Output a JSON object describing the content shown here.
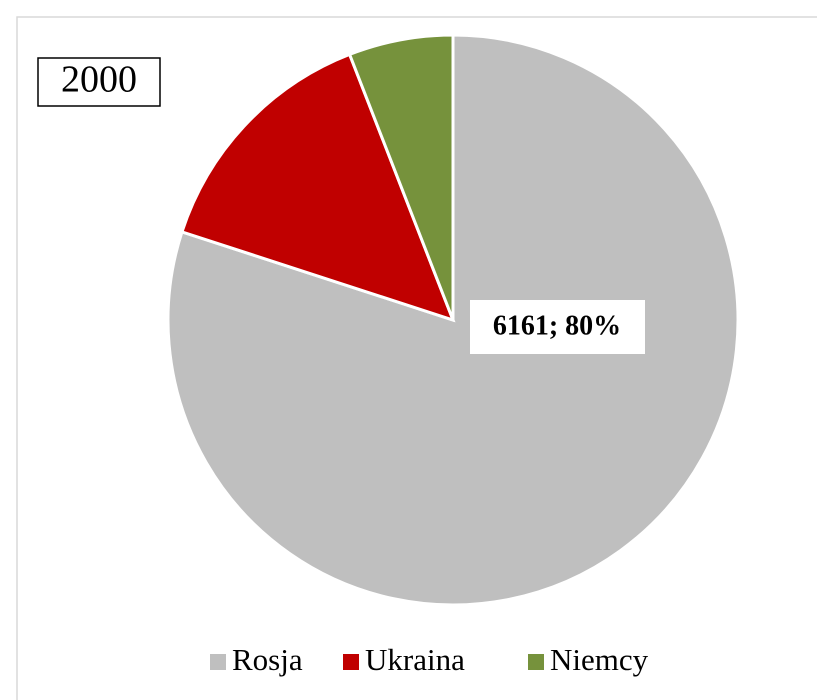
{
  "chart_data": {
    "type": "pie",
    "title": "2000",
    "categories": [
      "Rosja",
      "Ukraina",
      "Niemcy"
    ],
    "values": [
      6161,
      1085,
      455
    ],
    "value_labels": [
      "6161; 80%",
      null,
      null
    ],
    "colors": [
      "#bfbfbf",
      "#c00000",
      "#76923c"
    ],
    "legend": "bottom"
  }
}
